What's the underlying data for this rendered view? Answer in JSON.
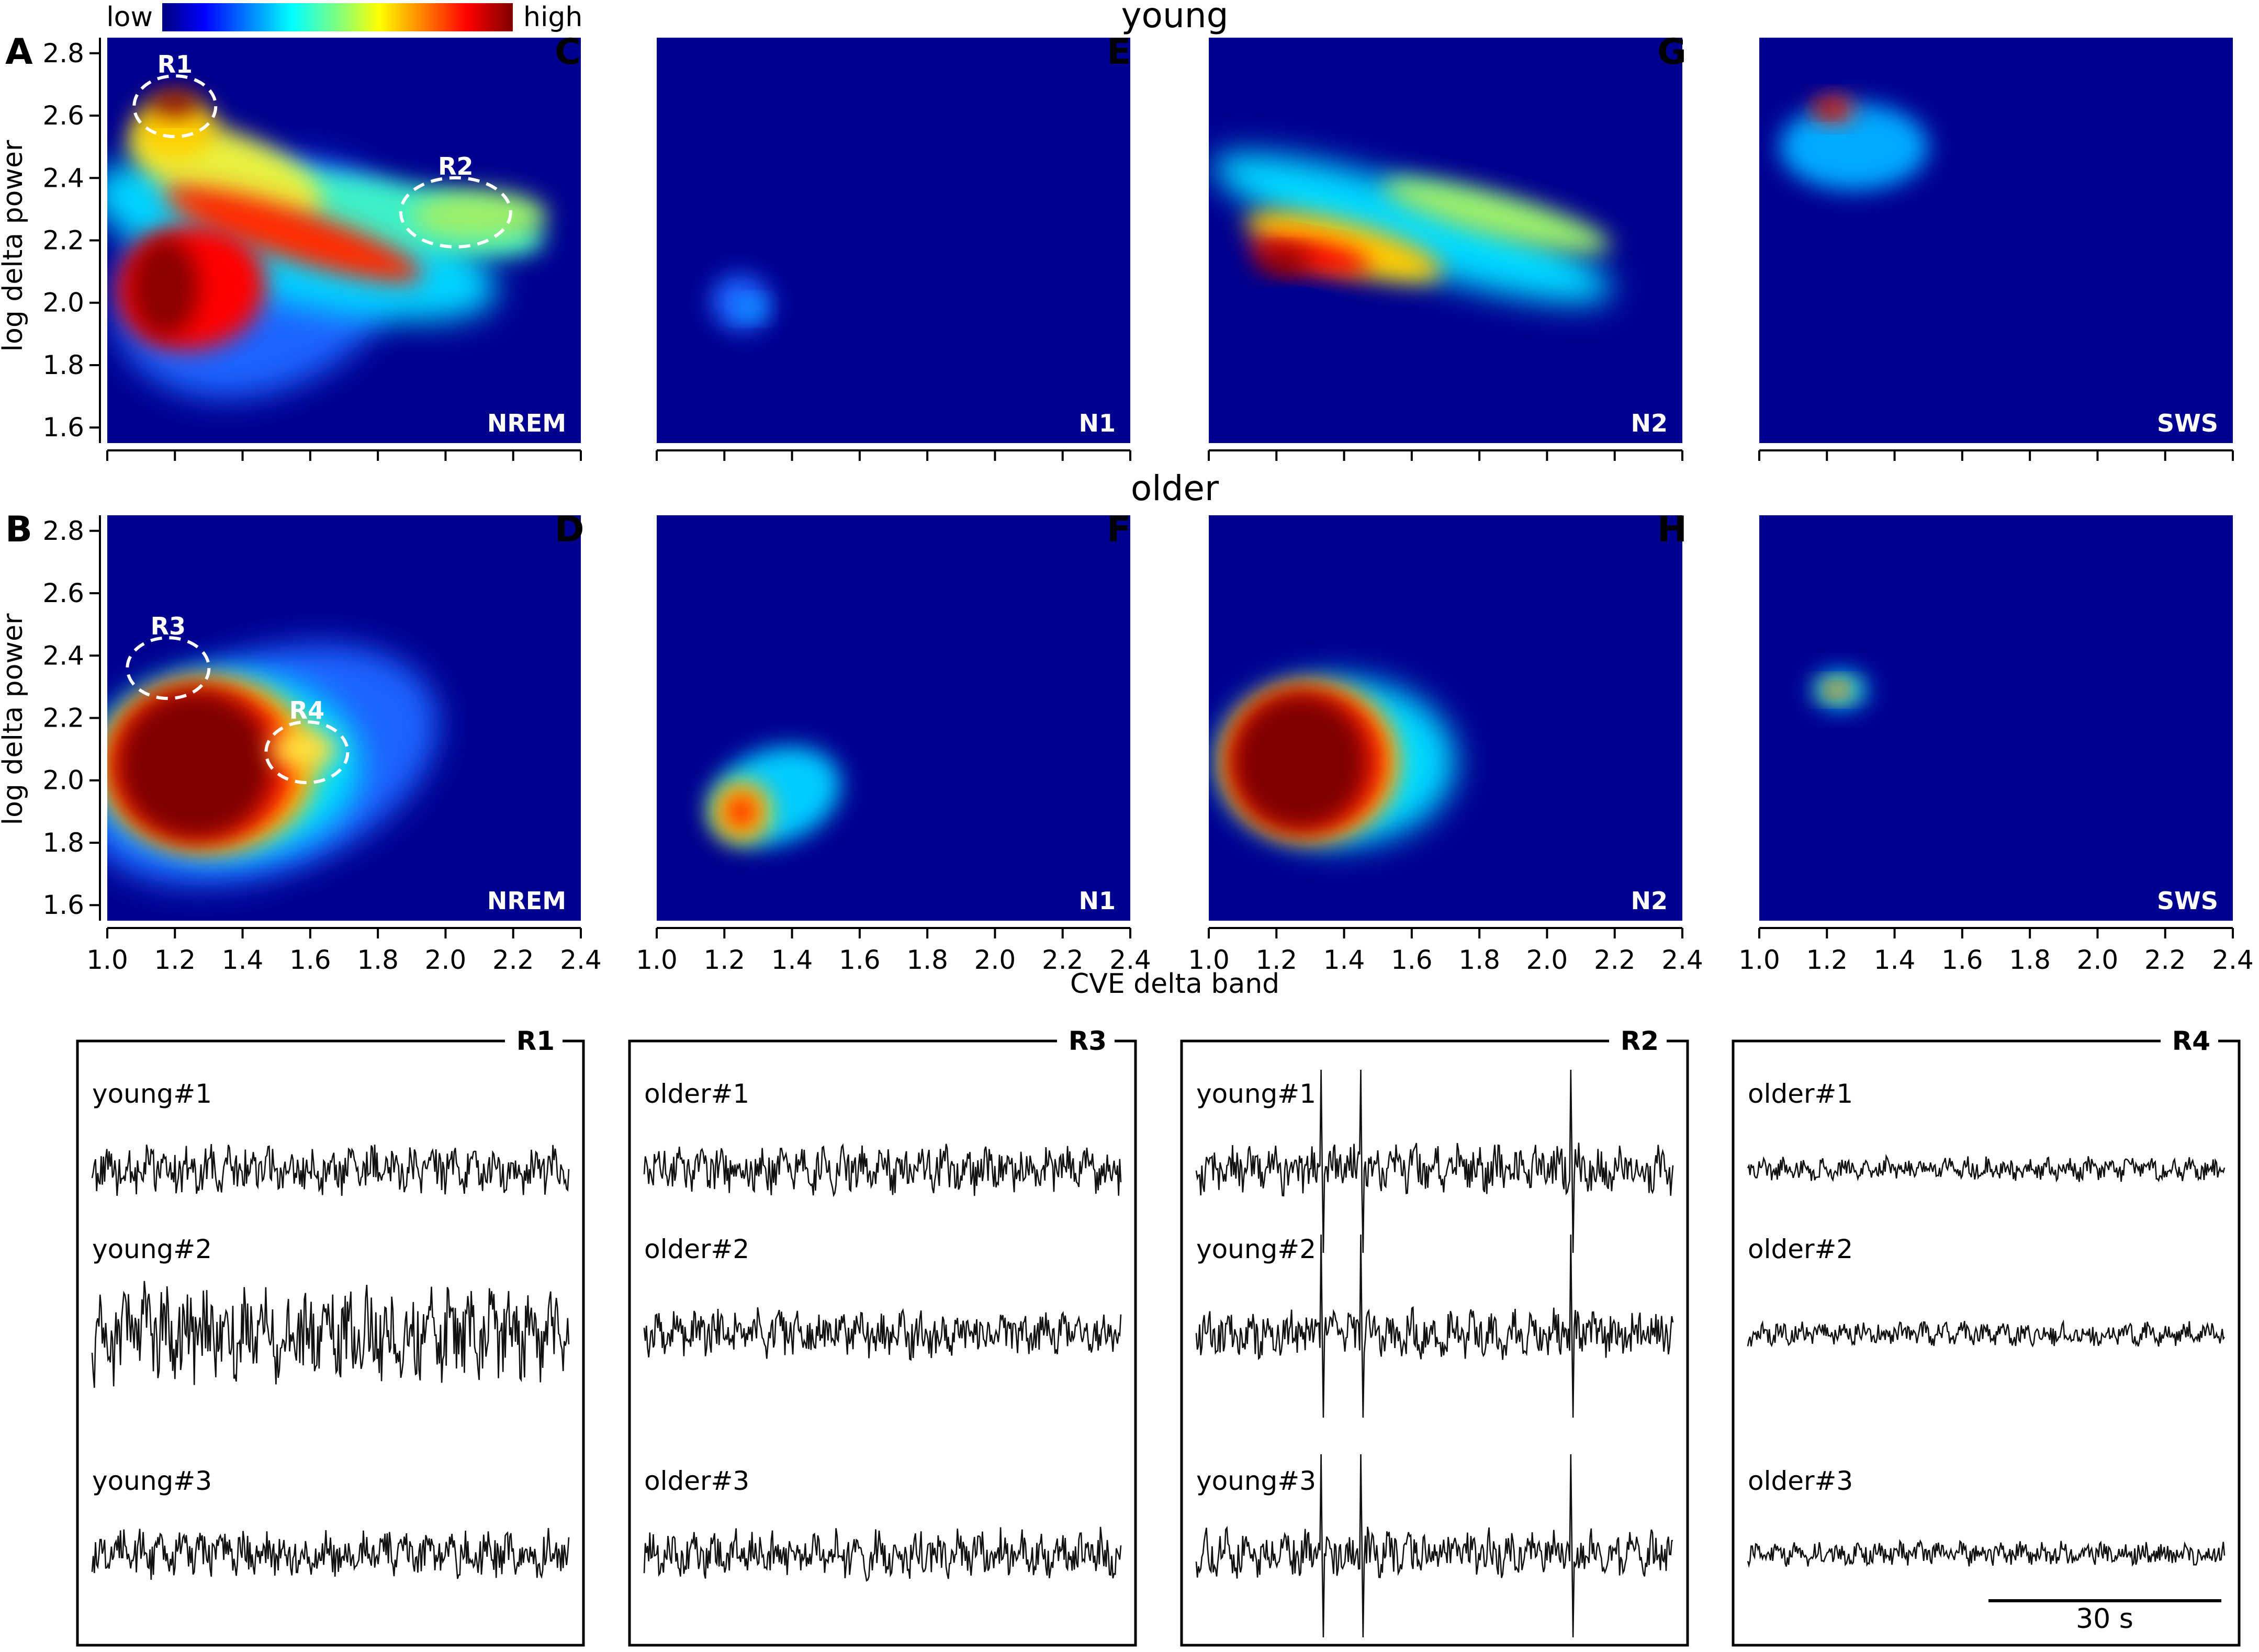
{
  "colorbar": {
    "low_label": "low",
    "high_label": "high"
  },
  "row_titles": {
    "young": "young",
    "older": "older"
  },
  "axis": {
    "ylabel": "log delta power",
    "xlabel": "CVE delta band"
  },
  "scale_bar": {
    "label": "30 s"
  },
  "chart_data": [
    {
      "type": "heatmap",
      "panel": "A",
      "stage": "NREM",
      "group": "young",
      "xlim": [
        1.0,
        2.4
      ],
      "ylim": [
        1.55,
        2.85
      ],
      "xticks": [
        "1.0",
        "1.2",
        "1.4",
        "1.6",
        "1.8",
        "2.0",
        "2.2",
        "2.4"
      ],
      "yticks": [
        "1.6",
        "1.8",
        "2.0",
        "2.2",
        "2.4",
        "2.6",
        "2.8"
      ],
      "show_xticklabels": false,
      "show_yticklabels": true,
      "annotations": [
        {
          "label": "R1",
          "x": 1.2,
          "y": 2.63
        },
        {
          "label": "R2",
          "x": 2.03,
          "y": 2.29
        }
      ]
    },
    {
      "type": "heatmap",
      "panel": "C",
      "stage": "N1",
      "group": "young",
      "xlim": [
        1.0,
        2.4
      ],
      "ylim": [
        1.55,
        2.85
      ],
      "xticks": [
        "1.0",
        "1.2",
        "1.4",
        "1.6",
        "1.8",
        "2.0",
        "2.2",
        "2.4"
      ],
      "yticks": [],
      "show_xticklabels": false,
      "show_yticklabels": false,
      "annotations": []
    },
    {
      "type": "heatmap",
      "panel": "E",
      "stage": "N2",
      "group": "young",
      "xlim": [
        1.0,
        2.4
      ],
      "ylim": [
        1.55,
        2.85
      ],
      "xticks": [
        "1.0",
        "1.2",
        "1.4",
        "1.6",
        "1.8",
        "2.0",
        "2.2",
        "2.4"
      ],
      "yticks": [],
      "show_xticklabels": false,
      "show_yticklabels": false,
      "annotations": []
    },
    {
      "type": "heatmap",
      "panel": "G",
      "stage": "SWS",
      "group": "young",
      "xlim": [
        1.0,
        2.4
      ],
      "ylim": [
        1.55,
        2.85
      ],
      "xticks": [
        "1.0",
        "1.2",
        "1.4",
        "1.6",
        "1.8",
        "2.0",
        "2.2",
        "2.4"
      ],
      "yticks": [],
      "show_xticklabels": false,
      "show_yticklabels": false,
      "annotations": []
    },
    {
      "type": "heatmap",
      "panel": "B",
      "stage": "NREM",
      "group": "older",
      "xlim": [
        1.0,
        2.4
      ],
      "ylim": [
        1.55,
        2.85
      ],
      "xticks": [
        "1.0",
        "1.2",
        "1.4",
        "1.6",
        "1.8",
        "2.0",
        "2.2",
        "2.4"
      ],
      "yticks": [
        "1.6",
        "1.8",
        "2.0",
        "2.2",
        "2.4",
        "2.6",
        "2.8"
      ],
      "show_xticklabels": true,
      "show_yticklabels": true,
      "annotations": [
        {
          "label": "R3",
          "x": 1.18,
          "y": 2.36
        },
        {
          "label": "R4",
          "x": 1.59,
          "y": 2.09
        }
      ]
    },
    {
      "type": "heatmap",
      "panel": "D",
      "stage": "N1",
      "group": "older",
      "xlim": [
        1.0,
        2.4
      ],
      "ylim": [
        1.55,
        2.85
      ],
      "xticks": [
        "1.0",
        "1.2",
        "1.4",
        "1.6",
        "1.8",
        "2.0",
        "2.2",
        "2.4"
      ],
      "yticks": [],
      "show_xticklabels": true,
      "show_yticklabels": false,
      "annotations": []
    },
    {
      "type": "heatmap",
      "panel": "F",
      "stage": "N2",
      "group": "older",
      "xlim": [
        1.0,
        2.4
      ],
      "ylim": [
        1.55,
        2.85
      ],
      "xticks": [
        "1.0",
        "1.2",
        "1.4",
        "1.6",
        "1.8",
        "2.0",
        "2.2",
        "2.4"
      ],
      "yticks": [],
      "show_xticklabels": true,
      "show_yticklabels": false,
      "annotations": []
    },
    {
      "type": "heatmap",
      "panel": "H",
      "stage": "SWS",
      "group": "older",
      "xlim": [
        1.0,
        2.4
      ],
      "ylim": [
        1.55,
        2.85
      ],
      "xticks": [
        "1.0",
        "1.2",
        "1.4",
        "1.6",
        "1.8",
        "2.0",
        "2.2",
        "2.4"
      ],
      "yticks": [],
      "show_xticklabels": true,
      "show_yticklabels": false,
      "annotations": []
    }
  ],
  "traces": [
    {
      "region": "R1",
      "rows": [
        "young#1",
        "young#2",
        "young#3"
      ]
    },
    {
      "region": "R3",
      "rows": [
        "older#1",
        "older#2",
        "older#3"
      ]
    },
    {
      "region": "R2",
      "rows": [
        "young#1",
        "young#2",
        "young#3"
      ]
    },
    {
      "region": "R4",
      "rows": [
        "older#1",
        "older#2",
        "older#3"
      ]
    }
  ],
  "colors": {
    "background": "#00008f",
    "colormap": [
      "#00007f",
      "#0000ff",
      "#00ffff",
      "#ffff00",
      "#ff0000",
      "#7f0000"
    ],
    "annotation": "#ffffff",
    "trace": "#111111"
  }
}
